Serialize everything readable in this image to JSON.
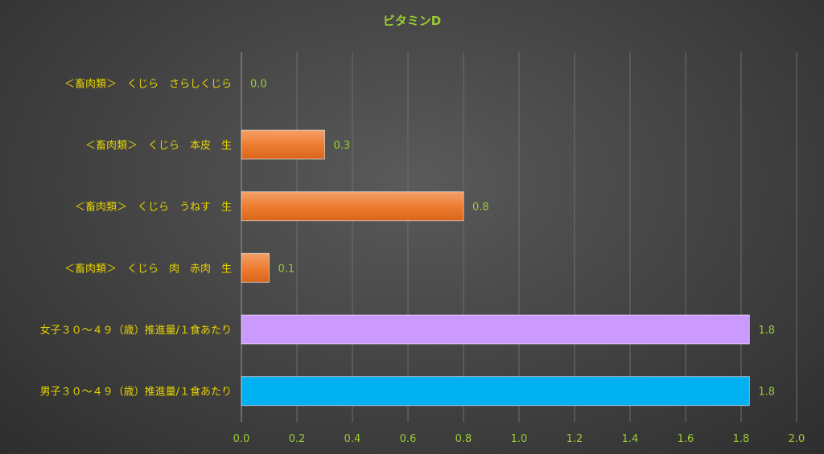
{
  "chart_data": {
    "type": "bar",
    "orientation": "horizontal",
    "title": "ビタミンD",
    "categories": [
      "＜畜肉類＞　くじら　さらしくじら",
      "＜畜肉類＞　くじら　本皮　生",
      "＜畜肉類＞　くじら　うねす　生",
      "＜畜肉類＞　くじら　肉　赤肉　生",
      "女子３０～４９（歳）推進量/１食あたり",
      "男子３０～４９（歳）推進量/１食あたり"
    ],
    "values": [
      0.0,
      0.3,
      0.8,
      0.1,
      1.83,
      1.83
    ],
    "data_labels": [
      "0.0",
      "0.3",
      "0.8",
      "0.1",
      "1.8",
      "1.8"
    ],
    "bar_colors": [
      "#ed7d31",
      "#ed7d31",
      "#ed7d31",
      "#ed7d31",
      "#cc99ff",
      "#00b0f0"
    ],
    "xlim": [
      0,
      2.0
    ],
    "x_ticks": [
      "0.0",
      "0.2",
      "0.4",
      "0.6",
      "0.8",
      "1.0",
      "1.2",
      "1.4",
      "1.6",
      "1.8",
      "2.0"
    ],
    "grid": true,
    "legend": "none"
  }
}
